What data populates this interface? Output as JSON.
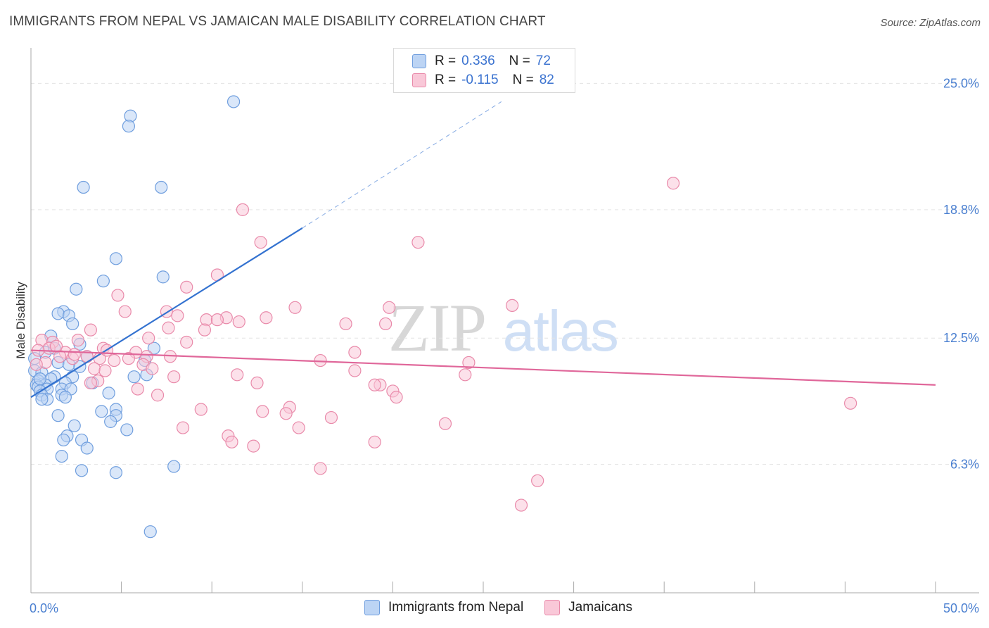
{
  "title": "IMMIGRANTS FROM NEPAL VS JAMAICAN MALE DISABILITY CORRELATION CHART",
  "source": "Source: ZipAtlas.com",
  "watermark": {
    "zip": "ZIP",
    "atlas": "atlas"
  },
  "legend_top": [
    {
      "r_label": "R =",
      "r_value": "0.336",
      "n_label": "N =",
      "n_value": "72"
    },
    {
      "r_label": "R =",
      "r_value": "-0.115",
      "n_label": "N =",
      "n_value": "82"
    }
  ],
  "legend_bottom": [
    "Immigrants from Nepal",
    "Jamaicans"
  ],
  "colors": {
    "nepal_fill": "#bcd4f4",
    "nepal_stroke": "#6f9ede",
    "nepal_line": "#3372d0",
    "jamaica_fill": "#f9c8d8",
    "jamaica_stroke": "#e98aaa",
    "jamaica_line": "#e0679a",
    "grid": "#e3e3e3",
    "tick_label": "#4a7fd0"
  },
  "chart_data": {
    "type": "scatter",
    "title": "IMMIGRANTS FROM NEPAL VS JAMAICAN MALE DISABILITY CORRELATION CHART",
    "xlabel": "",
    "ylabel": "Male Disability",
    "xlim": [
      0,
      50
    ],
    "ylim": [
      0,
      26.5
    ],
    "x_tick_labels": [
      "0.0%",
      "50.0%"
    ],
    "y_ticks": [
      6.3,
      12.5,
      18.8,
      25.0
    ],
    "y_tick_labels": [
      "6.3%",
      "12.5%",
      "18.8%",
      "25.0%"
    ],
    "grid": "horizontal dashed",
    "legend_placement": "top-center and bottom",
    "series": [
      {
        "name": "Immigrants from Nepal",
        "r": 0.336,
        "n": 72,
        "trend": {
          "x": [
            0,
            15
          ],
          "y": [
            9.6,
            17.9
          ],
          "extended_to": [
            26,
            24.1
          ]
        },
        "points": [
          [
            11.2,
            24.1
          ],
          [
            5.5,
            23.4
          ],
          [
            5.4,
            22.9
          ],
          [
            2.9,
            19.9
          ],
          [
            7.2,
            19.9
          ],
          [
            4.7,
            16.4
          ],
          [
            7.3,
            15.5
          ],
          [
            4.0,
            15.3
          ],
          [
            2.5,
            14.9
          ],
          [
            1.8,
            13.8
          ],
          [
            1.5,
            13.7
          ],
          [
            2.1,
            13.6
          ],
          [
            2.3,
            13.2
          ],
          [
            1.1,
            12.6
          ],
          [
            2.7,
            12.2
          ],
          [
            6.8,
            12.0
          ],
          [
            0.8,
            11.8
          ],
          [
            3.1,
            11.6
          ],
          [
            6.3,
            11.4
          ],
          [
            1.5,
            11.3
          ],
          [
            2.1,
            11.2
          ],
          [
            2.7,
            11.1
          ],
          [
            6.4,
            10.7
          ],
          [
            2.3,
            10.6
          ],
          [
            5.7,
            10.6
          ],
          [
            0.2,
            10.9
          ],
          [
            0.6,
            10.8
          ],
          [
            1.3,
            10.6
          ],
          [
            1.1,
            10.5
          ],
          [
            0.4,
            10.4
          ],
          [
            0.3,
            10.2
          ],
          [
            0.8,
            10.2
          ],
          [
            1.9,
            10.3
          ],
          [
            3.4,
            10.3
          ],
          [
            0.4,
            10.1
          ],
          [
            0.9,
            10.0
          ],
          [
            1.7,
            10.0
          ],
          [
            2.2,
            10.0
          ],
          [
            4.3,
            9.8
          ],
          [
            0.5,
            9.9
          ],
          [
            0.6,
            9.7
          ],
          [
            1.7,
            9.7
          ],
          [
            0.9,
            9.5
          ],
          [
            1.9,
            9.6
          ],
          [
            0.6,
            9.5
          ],
          [
            4.7,
            9.0
          ],
          [
            3.9,
            8.9
          ],
          [
            1.5,
            8.7
          ],
          [
            4.7,
            8.7
          ],
          [
            4.4,
            8.4
          ],
          [
            2.4,
            8.2
          ],
          [
            5.3,
            8.0
          ],
          [
            2.0,
            7.7
          ],
          [
            1.8,
            7.5
          ],
          [
            2.8,
            7.5
          ],
          [
            3.1,
            7.1
          ],
          [
            1.7,
            6.7
          ],
          [
            7.9,
            6.2
          ],
          [
            2.8,
            6.0
          ],
          [
            4.7,
            5.9
          ],
          [
            6.6,
            3.0
          ],
          [
            0.2,
            11.5
          ],
          [
            1.3,
            12.0
          ],
          [
            0.5,
            10.5
          ]
        ]
      },
      {
        "name": "Jamaicans",
        "r": -0.115,
        "n": 82,
        "trend": {
          "x": [
            0,
            50
          ],
          "y": [
            11.9,
            10.2
          ]
        },
        "points": [
          [
            35.5,
            20.1
          ],
          [
            11.7,
            18.8
          ],
          [
            12.7,
            17.2
          ],
          [
            21.4,
            17.2
          ],
          [
            10.3,
            15.6
          ],
          [
            8.6,
            15.0
          ],
          [
            4.8,
            14.6
          ],
          [
            14.6,
            14.0
          ],
          [
            26.6,
            14.1
          ],
          [
            19.8,
            14.0
          ],
          [
            5.2,
            13.8
          ],
          [
            7.5,
            13.8
          ],
          [
            8.1,
            13.6
          ],
          [
            13.0,
            13.5
          ],
          [
            10.8,
            13.5
          ],
          [
            9.7,
            13.4
          ],
          [
            10.3,
            13.4
          ],
          [
            11.5,
            13.3
          ],
          [
            17.4,
            13.2
          ],
          [
            19.6,
            13.2
          ],
          [
            7.6,
            13.0
          ],
          [
            3.3,
            12.9
          ],
          [
            9.6,
            12.9
          ],
          [
            0.6,
            12.4
          ],
          [
            1.2,
            12.3
          ],
          [
            6.5,
            12.5
          ],
          [
            8.6,
            12.3
          ],
          [
            1.0,
            12.0
          ],
          [
            4.0,
            12.0
          ],
          [
            5.8,
            11.8
          ],
          [
            0.4,
            11.9
          ],
          [
            1.9,
            11.8
          ],
          [
            3.1,
            11.6
          ],
          [
            1.6,
            11.6
          ],
          [
            2.3,
            11.5
          ],
          [
            3.8,
            11.5
          ],
          [
            0.8,
            11.3
          ],
          [
            6.4,
            11.6
          ],
          [
            7.7,
            11.6
          ],
          [
            16.0,
            11.4
          ],
          [
            24.2,
            11.3
          ],
          [
            4.6,
            11.4
          ],
          [
            5.4,
            11.5
          ],
          [
            6.2,
            11.2
          ],
          [
            17.9,
            11.8
          ],
          [
            3.5,
            11.0
          ],
          [
            4.1,
            10.9
          ],
          [
            17.9,
            10.9
          ],
          [
            11.4,
            10.7
          ],
          [
            24.0,
            10.7
          ],
          [
            3.7,
            10.4
          ],
          [
            7.9,
            10.6
          ],
          [
            3.3,
            10.3
          ],
          [
            12.5,
            10.3
          ],
          [
            19.3,
            10.2
          ],
          [
            19.0,
            10.2
          ],
          [
            20.0,
            9.9
          ],
          [
            20.2,
            9.6
          ],
          [
            7.0,
            9.7
          ],
          [
            5.9,
            10.0
          ],
          [
            45.3,
            9.3
          ],
          [
            14.3,
            9.1
          ],
          [
            9.4,
            9.0
          ],
          [
            12.8,
            8.9
          ],
          [
            14.1,
            8.8
          ],
          [
            16.6,
            8.6
          ],
          [
            22.9,
            8.3
          ],
          [
            8.4,
            8.1
          ],
          [
            14.8,
            8.1
          ],
          [
            10.9,
            7.7
          ],
          [
            11.1,
            7.4
          ],
          [
            19.0,
            7.4
          ],
          [
            12.3,
            7.2
          ],
          [
            16.0,
            6.1
          ],
          [
            28.0,
            5.5
          ],
          [
            27.1,
            4.3
          ],
          [
            2.4,
            11.7
          ],
          [
            1.4,
            12.1
          ],
          [
            0.3,
            11.2
          ],
          [
            6.7,
            11.0
          ],
          [
            2.6,
            12.4
          ],
          [
            4.2,
            11.9
          ]
        ]
      }
    ]
  }
}
